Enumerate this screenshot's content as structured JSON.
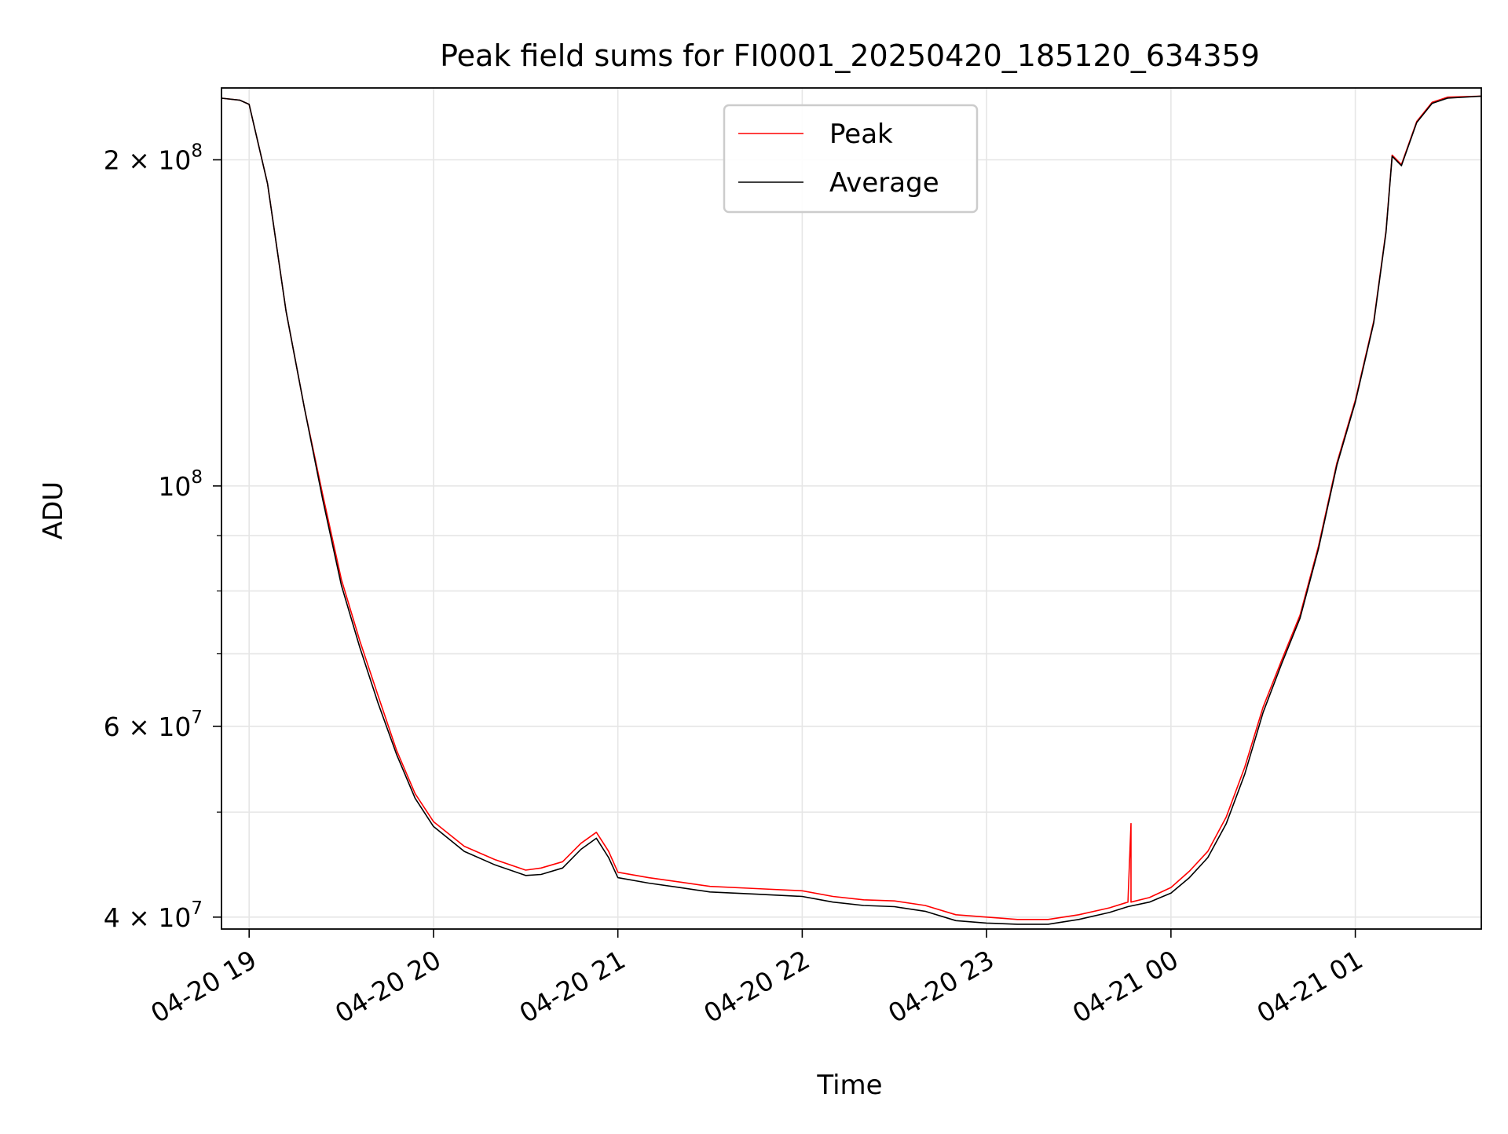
{
  "chart_data": {
    "type": "line",
    "title": "Peak field sums for FI0001_20250420_185120_634359",
    "xlabel": "Time",
    "ylabel": "ADU",
    "y_scale": "log",
    "ylim": [
      39000000,
      233000000
    ],
    "xlim": [
      "2025-04-20 18:51",
      "2025-04-21 01:41"
    ],
    "x_ticks": [
      {
        "value": "2025-04-20 19:00",
        "label": "04-20 19"
      },
      {
        "value": "2025-04-20 20:00",
        "label": "04-20 20"
      },
      {
        "value": "2025-04-20 21:00",
        "label": "04-20 21"
      },
      {
        "value": "2025-04-20 22:00",
        "label": "04-20 22"
      },
      {
        "value": "2025-04-20 23:00",
        "label": "04-20 23"
      },
      {
        "value": "2025-04-21 00:00",
        "label": "04-21 00"
      },
      {
        "value": "2025-04-21 01:00",
        "label": "04-21 01"
      }
    ],
    "y_ticks": [
      {
        "value": 40000000,
        "label": "4 × 10",
        "exp": "7"
      },
      {
        "value": 60000000,
        "label": "6 × 10",
        "exp": "7"
      },
      {
        "value": 100000000,
        "label": "10",
        "exp": "8"
      },
      {
        "value": 200000000,
        "label": "2 × 10",
        "exp": "8"
      }
    ],
    "y_minor_ticks": [
      50000000,
      70000000,
      80000000,
      90000000
    ],
    "grid": true,
    "legend_position": "top-center",
    "series": [
      {
        "name": "Peak",
        "color": "#ff0000",
        "x": [
          "2025-04-20 18:51",
          "2025-04-20 18:57",
          "2025-04-20 19:00",
          "2025-04-20 19:06",
          "2025-04-20 19:12",
          "2025-04-20 19:18",
          "2025-04-20 19:24",
          "2025-04-20 19:30",
          "2025-04-20 19:36",
          "2025-04-20 19:42",
          "2025-04-20 19:48",
          "2025-04-20 19:54",
          "2025-04-20 20:00",
          "2025-04-20 20:10",
          "2025-04-20 20:20",
          "2025-04-20 20:30",
          "2025-04-20 20:35",
          "2025-04-20 20:42",
          "2025-04-20 20:48",
          "2025-04-20 20:53",
          "2025-04-20 20:57",
          "2025-04-20 21:00",
          "2025-04-20 21:10",
          "2025-04-20 21:20",
          "2025-04-20 21:30",
          "2025-04-20 21:45",
          "2025-04-20 22:00",
          "2025-04-20 22:10",
          "2025-04-20 22:20",
          "2025-04-20 22:30",
          "2025-04-20 22:40",
          "2025-04-20 22:50",
          "2025-04-20 23:00",
          "2025-04-20 23:10",
          "2025-04-20 23:20",
          "2025-04-20 23:30",
          "2025-04-20 23:40",
          "2025-04-20 23:46",
          "2025-04-20 23:47",
          "2025-04-20 23:47",
          "2025-04-20 23:53",
          "2025-04-21 00:00",
          "2025-04-21 00:06",
          "2025-04-21 00:12",
          "2025-04-21 00:18",
          "2025-04-21 00:24",
          "2025-04-21 00:30",
          "2025-04-21 00:36",
          "2025-04-21 00:42",
          "2025-04-21 00:48",
          "2025-04-21 00:54",
          "2025-04-21 01:00",
          "2025-04-21 01:06",
          "2025-04-21 01:10",
          "2025-04-21 01:12",
          "2025-04-21 01:15",
          "2025-04-21 01:20",
          "2025-04-21 01:25",
          "2025-04-21 01:30",
          "2025-04-21 01:41"
        ],
        "values": [
          228000000,
          227000000,
          225000000,
          190000000,
          145000000,
          118000000,
          98000000,
          82000000,
          72000000,
          64000000,
          57000000,
          52000000,
          49000000,
          46500000,
          45200000,
          44200000,
          44400000,
          45000000,
          46800000,
          47900000,
          46000000,
          44000000,
          43500000,
          43100000,
          42700000,
          42500000,
          42300000,
          41800000,
          41500000,
          41400000,
          41000000,
          40200000,
          40000000,
          39800000,
          39800000,
          40200000,
          40800000,
          41300000,
          48800000,
          41300000,
          41700000,
          42600000,
          44100000,
          46000000,
          49500000,
          55000000,
          62500000,
          69000000,
          76000000,
          88000000,
          105000000,
          120000000,
          142000000,
          172000000,
          202000000,
          198000000,
          217000000,
          226000000,
          228500000,
          229000000
        ]
      },
      {
        "name": "Average",
        "color": "#000000",
        "x": [
          "2025-04-20 18:51",
          "2025-04-20 18:57",
          "2025-04-20 19:00",
          "2025-04-20 19:06",
          "2025-04-20 19:12",
          "2025-04-20 19:18",
          "2025-04-20 19:24",
          "2025-04-20 19:30",
          "2025-04-20 19:36",
          "2025-04-20 19:42",
          "2025-04-20 19:48",
          "2025-04-20 19:54",
          "2025-04-20 20:00",
          "2025-04-20 20:10",
          "2025-04-20 20:20",
          "2025-04-20 20:30",
          "2025-04-20 20:35",
          "2025-04-20 20:42",
          "2025-04-20 20:48",
          "2025-04-20 20:53",
          "2025-04-20 20:57",
          "2025-04-20 21:00",
          "2025-04-20 21:10",
          "2025-04-20 21:20",
          "2025-04-20 21:30",
          "2025-04-20 21:45",
          "2025-04-20 22:00",
          "2025-04-20 22:10",
          "2025-04-20 22:20",
          "2025-04-20 22:30",
          "2025-04-20 22:40",
          "2025-04-20 22:50",
          "2025-04-20 23:00",
          "2025-04-20 23:10",
          "2025-04-20 23:20",
          "2025-04-20 23:30",
          "2025-04-20 23:40",
          "2025-04-20 23:46",
          "2025-04-20 23:53",
          "2025-04-21 00:00",
          "2025-04-21 00:06",
          "2025-04-21 00:12",
          "2025-04-21 00:18",
          "2025-04-21 00:24",
          "2025-04-21 00:30",
          "2025-04-21 00:36",
          "2025-04-21 00:42",
          "2025-04-21 00:48",
          "2025-04-21 00:54",
          "2025-04-21 01:00",
          "2025-04-21 01:06",
          "2025-04-21 01:10",
          "2025-04-21 01:12",
          "2025-04-21 01:15",
          "2025-04-21 01:20",
          "2025-04-21 01:25",
          "2025-04-21 01:30",
          "2025-04-21 01:41"
        ],
        "values": [
          228000000,
          227000000,
          225000000,
          190000000,
          145000000,
          118000000,
          97000000,
          81000000,
          71000000,
          63000000,
          56500000,
          51500000,
          48500000,
          46000000,
          44700000,
          43700000,
          43800000,
          44400000,
          46200000,
          47300000,
          45400000,
          43500000,
          43000000,
          42600000,
          42200000,
          42000000,
          41800000,
          41300000,
          41000000,
          40900000,
          40500000,
          39700000,
          39500000,
          39400000,
          39400000,
          39800000,
          40400000,
          40900000,
          41300000,
          42100000,
          43500000,
          45400000,
          48800000,
          54200000,
          61800000,
          68500000,
          75500000,
          87500000,
          104500000,
          119500000,
          141500000,
          171500000,
          201500000,
          197500000,
          216500000,
          225500000,
          228000000,
          229000000
        ]
      }
    ]
  }
}
